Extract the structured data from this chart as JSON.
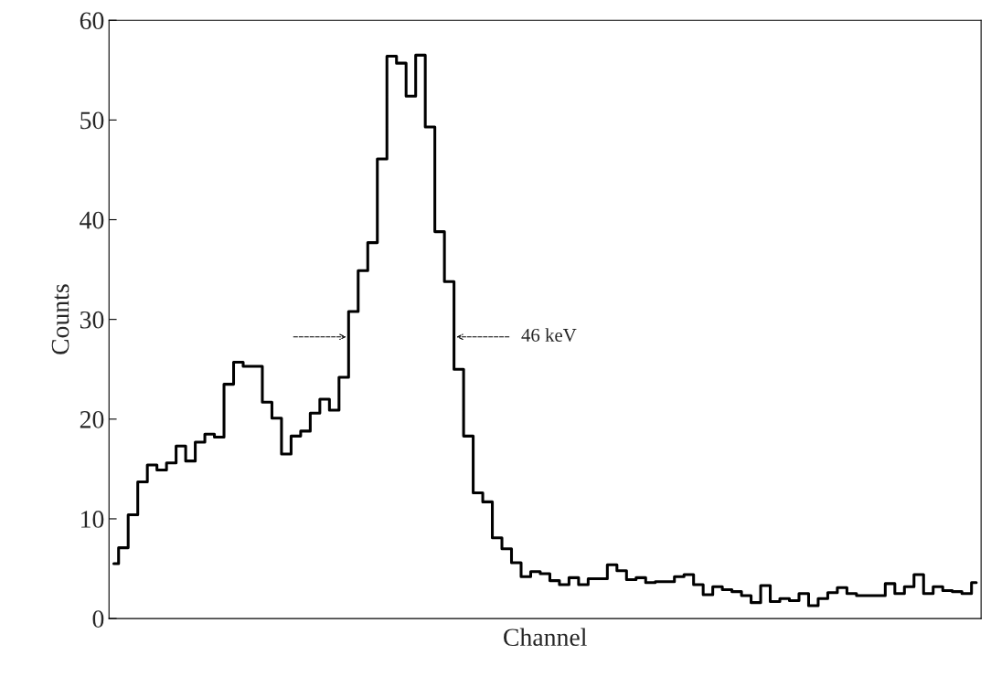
{
  "chart_data": {
    "type": "step",
    "xlabel": "Channel",
    "ylabel": "Counts",
    "categories": [
      null,
      null,
      null,
      null,
      null,
      null,
      null,
      null,
      null,
      null,
      null,
      null,
      null,
      null,
      null,
      null,
      null,
      null,
      null,
      null,
      null,
      null,
      null,
      null,
      null,
      null,
      null,
      null,
      null,
      null,
      null,
      null,
      null,
      null,
      null,
      null,
      null,
      null,
      null,
      null,
      null,
      null,
      null,
      null,
      null,
      null,
      null,
      null,
      null,
      null,
      null,
      null,
      null,
      null,
      null,
      null,
      null,
      null,
      null,
      null,
      null,
      null,
      null,
      null,
      null,
      null,
      null,
      null,
      null,
      null,
      null,
      null,
      null,
      null,
      null,
      null,
      null,
      null,
      null,
      null,
      null,
      null,
      null,
      null,
      null,
      null,
      null,
      null,
      null,
      null,
      null
    ],
    "values": [
      5.5,
      7.1,
      10.4,
      13.7,
      15.4,
      14.9,
      15.6,
      17.3,
      15.8,
      17.7,
      18.5,
      18.2,
      23.5,
      25.7,
      25.3,
      25.3,
      21.7,
      20.1,
      16.5,
      18.3,
      18.8,
      20.6,
      22.0,
      20.9,
      24.2,
      30.8,
      34.9,
      37.7,
      46.1,
      56.4,
      55.7,
      52.4,
      56.5,
      49.3,
      38.8,
      33.8,
      25.0,
      18.3,
      12.6,
      11.7,
      8.1,
      7.0,
      5.6,
      4.2,
      4.7,
      4.5,
      3.8,
      3.4,
      4.1,
      3.4,
      4.0,
      4.0,
      5.4,
      4.8,
      3.9,
      4.1,
      3.6,
      3.7,
      3.7,
      4.2,
      4.4,
      3.4,
      2.4,
      3.2,
      2.9,
      2.7,
      2.3,
      1.6,
      3.3,
      1.7,
      2.0,
      1.8,
      2.5,
      1.3,
      2.0,
      2.6,
      3.1,
      2.5,
      2.3,
      2.3,
      2.3,
      3.5,
      2.5,
      3.2,
      4.4,
      2.5,
      3.2,
      2.8,
      2.7,
      2.5,
      3.6
    ],
    "color": "#000000",
    "ylim": [
      0,
      60
    ],
    "yticks": [
      0,
      10,
      20,
      30,
      40,
      50,
      60
    ],
    "annotations": [
      "46 keV"
    ],
    "grid": false,
    "legend": false
  }
}
